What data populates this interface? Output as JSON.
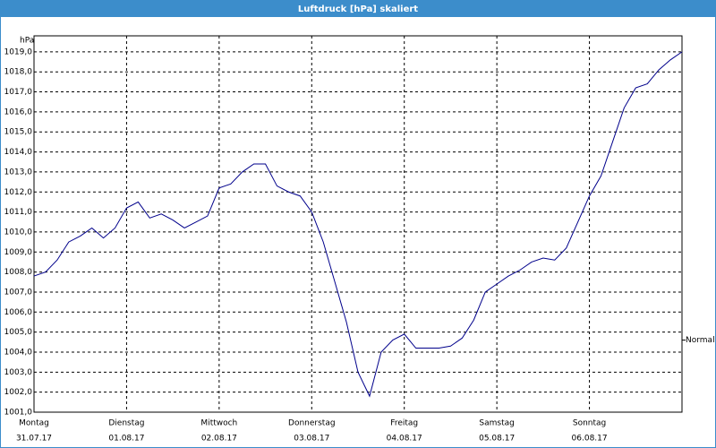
{
  "chart_data": {
    "type": "line",
    "title": "Luftdruck [hPa] skaliert",
    "y_unit": "hPa",
    "x": [
      0,
      3,
      6,
      9,
      12,
      15,
      18,
      21,
      24,
      27,
      30,
      33,
      36,
      39,
      42,
      45,
      48,
      51,
      54,
      57,
      60,
      63,
      66,
      69,
      72,
      75,
      78,
      81,
      84,
      87,
      90,
      93,
      96,
      99,
      102,
      105,
      108,
      111,
      114,
      117,
      120,
      123,
      126,
      129,
      132,
      135,
      138,
      141,
      144,
      147,
      150,
      153,
      156,
      159,
      162,
      165,
      168
    ],
    "series": [
      {
        "color": "#00008b",
        "values": [
          1007.8,
          1008.0,
          1008.6,
          1009.5,
          1009.8,
          1010.2,
          1009.7,
          1010.2,
          1011.2,
          1011.5,
          1010.7,
          1010.9,
          1010.6,
          1010.2,
          1010.5,
          1010.8,
          1012.2,
          1012.4,
          1013.0,
          1013.4,
          1013.4,
          1012.3,
          1012.0,
          1011.8,
          1011.0,
          1009.5,
          1007.5,
          1005.5,
          1003.0,
          1001.8,
          1004.0,
          1004.6,
          1004.9,
          1004.2,
          1004.2,
          1004.2,
          1004.3,
          1004.7,
          1005.6,
          1007.0,
          1007.4,
          1007.8,
          1008.1,
          1008.5,
          1008.7,
          1008.6,
          1009.2,
          1010.5,
          1011.8,
          1012.8,
          1014.5,
          1016.2,
          1017.2,
          1017.4,
          1018.1,
          1018.6,
          1019.0
        ]
      }
    ],
    "xlim": [
      0,
      168
    ],
    "xticks": [
      {
        "value": 0,
        "label": "Montag",
        "date": "31.07.17"
      },
      {
        "value": 24,
        "label": "Dienstag",
        "date": "01.08.17"
      },
      {
        "value": 48,
        "label": "Mittwoch",
        "date": "02.08.17"
      },
      {
        "value": 72,
        "label": "Donnerstag",
        "date": "03.08.17"
      },
      {
        "value": 96,
        "label": "Freitag",
        "date": "04.08.17"
      },
      {
        "value": 120,
        "label": "Samstag",
        "date": "05.08.17"
      },
      {
        "value": 144,
        "label": "Sonntag",
        "date": "06.08.17"
      }
    ],
    "ylim": [
      1001,
      1019.8
    ],
    "yticks": [
      {
        "value": 1001,
        "label": "1001,0"
      },
      {
        "value": 1002,
        "label": "1002,0"
      },
      {
        "value": 1003,
        "label": "1003,0"
      },
      {
        "value": 1004,
        "label": "1004,0"
      },
      {
        "value": 1005,
        "label": "1005,0"
      },
      {
        "value": 1006,
        "label": "1006,0"
      },
      {
        "value": 1007,
        "label": "1007,0"
      },
      {
        "value": 1008,
        "label": "1008,0"
      },
      {
        "value": 1009,
        "label": "1009,0"
      },
      {
        "value": 1010,
        "label": "1010,0"
      },
      {
        "value": 1011,
        "label": "1011,0"
      },
      {
        "value": 1012,
        "label": "1012,0"
      },
      {
        "value": 1013,
        "label": "1013,0"
      },
      {
        "value": 1014,
        "label": "1014,0"
      },
      {
        "value": 1015,
        "label": "1015,0"
      },
      {
        "value": 1016,
        "label": "1016,0"
      },
      {
        "value": 1017,
        "label": "1017,0"
      },
      {
        "value": 1018,
        "label": "1018,0"
      },
      {
        "value": 1019,
        "label": "1019,0"
      }
    ],
    "reference": {
      "label": "Normal",
      "value": 1004.6
    },
    "grid": true
  }
}
